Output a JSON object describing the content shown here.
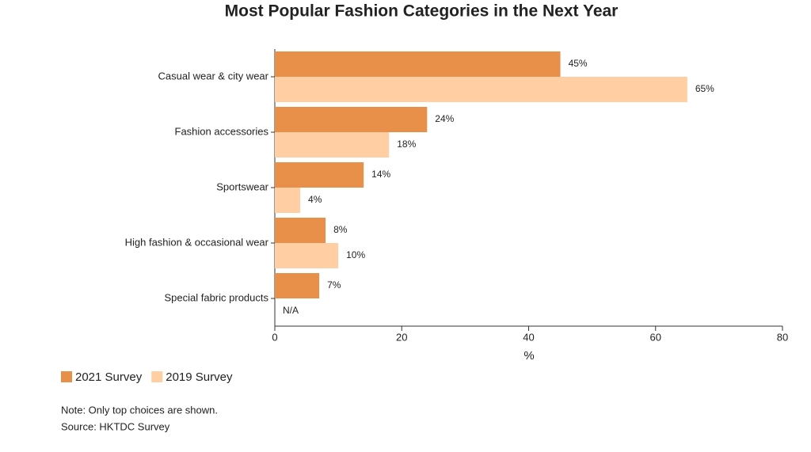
{
  "chart_data": {
    "type": "bar",
    "orientation": "horizontal",
    "title": "Most Popular Fashion Categories in the Next Year",
    "categories": [
      "Casual wear & city wear",
      "Fashion accessories",
      "Sportswear",
      "High fashion & occasional wear",
      "Special fabric products"
    ],
    "series": [
      {
        "name": "2021 Survey",
        "color": "#e8904a",
        "values": [
          45,
          24,
          14,
          8,
          7
        ],
        "value_labels": [
          "45%",
          "24%",
          "14%",
          "8%",
          "7%"
        ]
      },
      {
        "name": "2019 Survey",
        "color": "#ffcfa3",
        "values": [
          65,
          18,
          4,
          10,
          null
        ],
        "value_labels": [
          "65%",
          "18%",
          "4%",
          "10%",
          "N/A"
        ]
      }
    ],
    "xlabel": "%",
    "xlim": [
      0,
      80
    ],
    "xticks": [
      0,
      20,
      40,
      60,
      80
    ],
    "notes": [
      "Note: Only top choices are shown.",
      "Source: HKTDC Survey"
    ]
  }
}
